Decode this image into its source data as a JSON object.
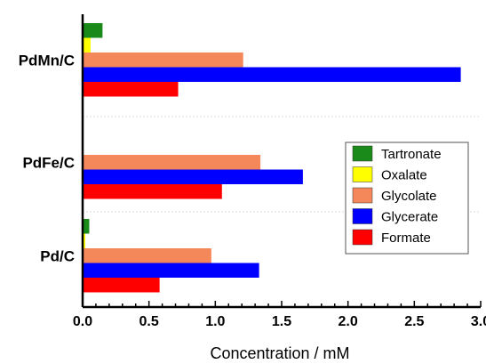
{
  "chart_data": {
    "type": "bar",
    "orientation": "horizontal",
    "categories": [
      "PdMn/C",
      "PdFe/C",
      "Pd/C"
    ],
    "series": [
      {
        "name": "Tartronate",
        "color": "#1a8a1a",
        "values": [
          0.15,
          0,
          0.05
        ]
      },
      {
        "name": "Oxalate",
        "color": "#ffff00",
        "values": [
          0.06,
          0,
          0.02
        ]
      },
      {
        "name": "Glycolate",
        "color": "#f4885a",
        "values": [
          1.21,
          1.34,
          0.97
        ]
      },
      {
        "name": "Glycerate",
        "color": "#0000ff",
        "values": [
          2.85,
          1.66,
          1.33
        ]
      },
      {
        "name": "Formate",
        "color": "#ff0000",
        "values": [
          0.72,
          1.05,
          0.58
        ]
      }
    ],
    "xlabel": "Concentration / mM",
    "ylabel": "",
    "xlim": [
      0,
      3.0
    ],
    "xticks": [
      "0.0",
      "0.5",
      "1.0",
      "1.5",
      "2.0",
      "2.5",
      "3.0"
    ],
    "grid": false,
    "legend_position": "right"
  }
}
